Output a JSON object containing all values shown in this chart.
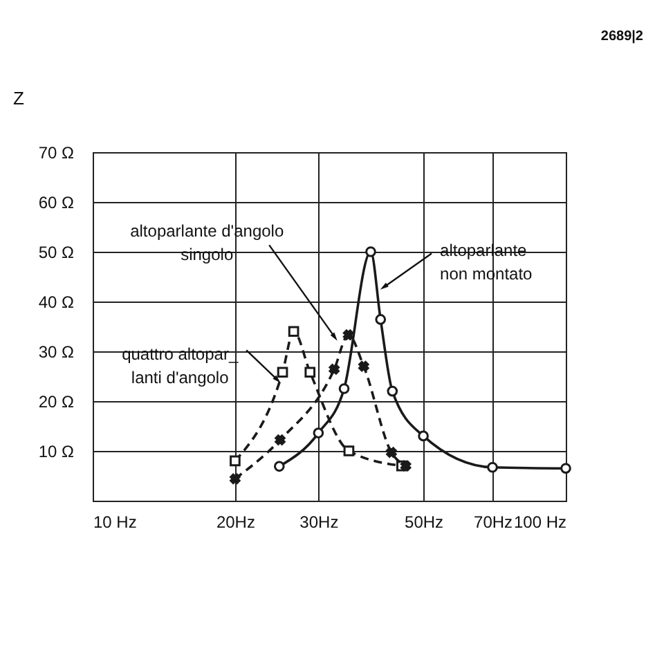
{
  "chart_data": {
    "type": "line",
    "ylabel": "Z",
    "log": "x",
    "grid": true,
    "xlim": [
      10,
      100
    ],
    "xticks": [
      {
        "value": 10,
        "label": "10 Hz"
      },
      {
        "value": 20,
        "label": "20Hz"
      },
      {
        "value": 30,
        "label": "30Hz"
      },
      {
        "value": 50,
        "label": "50Hz"
      },
      {
        "value": 70,
        "label": "70Hz"
      },
      {
        "value": 100,
        "label": "100 Hz"
      }
    ],
    "ylim": [
      0,
      70
    ],
    "yticks": [
      {
        "value": 10,
        "label": "10 Ω"
      },
      {
        "value": 20,
        "label": "20 Ω"
      },
      {
        "value": 30,
        "label": "30 Ω"
      },
      {
        "value": 40,
        "label": "40 Ω"
      },
      {
        "value": 50,
        "label": "50 Ω"
      },
      {
        "value": 60,
        "label": "60 Ω"
      },
      {
        "value": 70,
        "label": "70 Ω"
      }
    ],
    "series": [
      {
        "color": "#1a1a1a",
        "line_style": "solid",
        "marker": "circle",
        "x": [
          24.8,
          30,
          34,
          38.7,
          40.6,
          43,
          50,
          70,
          100
        ],
        "values": [
          6.9,
          13.6,
          22.5,
          50,
          36.4,
          22,
          13,
          6.7,
          6.5
        ]
      },
      {
        "color": "#1a1a1a",
        "line_style": "dashed",
        "marker": "square",
        "x": [
          20,
          25.2,
          26.6,
          28.8,
          34.8,
          45
        ],
        "values": [
          8,
          25.8,
          34,
          25.8,
          10,
          7
        ]
      },
      {
        "color": "#1a1a1a",
        "line_style": "dashed",
        "marker": "cross",
        "x": [
          20,
          24.9,
          32.4,
          34.7,
          37.4,
          42.8,
          45.9
        ],
        "values": [
          4.4,
          12.2,
          26.4,
          33.3,
          27,
          9.7,
          7
        ]
      }
    ],
    "annotations": [
      {
        "text": "altoparlante\nnon montato",
        "x": 41.4,
        "y": 43
      },
      {
        "text": "altoparlante d'angolo\nsingolo",
        "x": 32.4,
        "y": 33
      },
      {
        "text": "quattro altopar_\nlanti d'angolo",
        "x": 24.5,
        "y": 24.4
      },
      "2689|2"
    ]
  }
}
